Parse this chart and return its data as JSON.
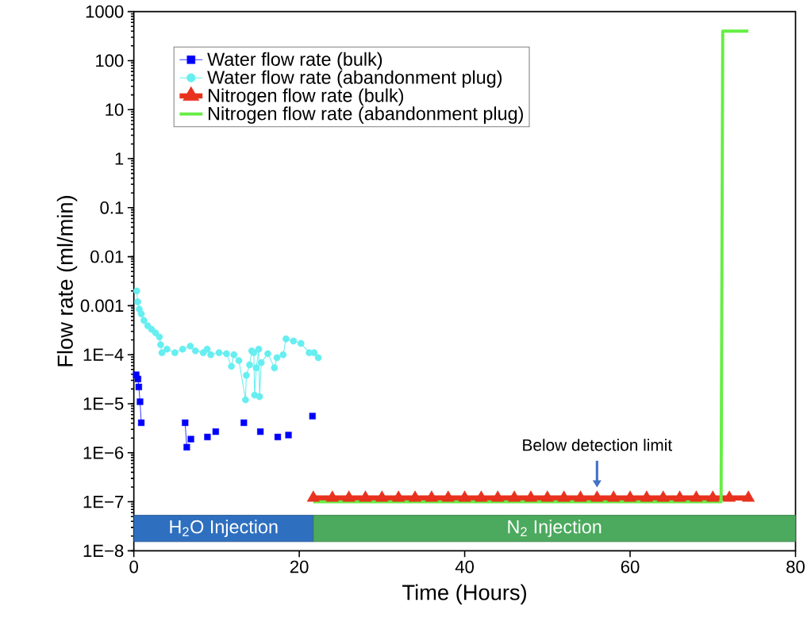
{
  "chart_data": {
    "type": "line",
    "xlabel": "Time (Hours)",
    "ylabel": "Flow rate (ml/min)",
    "log": "y",
    "xlim": [
      0,
      80
    ],
    "xticks": [
      0,
      20,
      40,
      60,
      80
    ],
    "ylim": [
      1e-08,
      1000
    ],
    "yticks": [
      {
        "value": 1e-08,
        "label": "1E−8"
      },
      {
        "value": 1e-07,
        "label": "1E−7"
      },
      {
        "value": 1e-06,
        "label": "1E−6"
      },
      {
        "value": 1e-05,
        "label": "1E−5"
      },
      {
        "value": 0.0001,
        "label": "1E−4"
      },
      0.001,
      0.01,
      0.1,
      1,
      10,
      100,
      1000
    ],
    "legend": "top left",
    "series": [
      {
        "name": "Water flow rate (bulk)",
        "color": "#0000ff",
        "marker": "square",
        "x": [
          0.28,
          0.5,
          0.6,
          0.75,
          0.9,
          3.5,
          6.2,
          6.4,
          6.6,
          6.9,
          7.9,
          8.9,
          9.4,
          9.9,
          11.6,
          13.3,
          14.3,
          15.3,
          16.3,
          17.4,
          18.0,
          18.7,
          20.1,
          21.6
        ],
        "values": [
          3.9e-05,
          3.2e-05,
          2.2e-05,
          1.1e-05,
          4.1e-06,
          null,
          4.1e-06,
          1.3e-06,
          null,
          1.9e-06,
          null,
          2.1e-06,
          null,
          2.7e-06,
          null,
          4.1e-06,
          null,
          2.7e-06,
          null,
          2.1e-06,
          null,
          2.3e-06,
          null,
          5.6e-06
        ]
      },
      {
        "name": "Water flow rate (abandonment plug)",
        "color": "#66eef0",
        "marker": "circle",
        "x": [
          0.35,
          0.47,
          0.65,
          0.9,
          1.22,
          1.68,
          2.15,
          2.62,
          3.09,
          3.24,
          3.4,
          4.0,
          4.96,
          5.9,
          6.83,
          7.45,
          8.39,
          8.86,
          9.3,
          10.3,
          11.2,
          11.8,
          12.1,
          12.7,
          13.5,
          13.6,
          14.0,
          14.25,
          14.5,
          14.6,
          14.8,
          15.1,
          15.2,
          15.4,
          16.2,
          17.0,
          17.3,
          18.05,
          18.4,
          19.3,
          20.2,
          21.2,
          21.8,
          22.3
        ],
        "values": [
          0.002,
          0.0012,
          0.00085,
          0.00068,
          0.0005,
          0.00039,
          0.00033,
          0.00028,
          0.00023,
          0.00016,
          0.00011,
          0.00013,
          0.00011,
          0.00013,
          0.00015,
          0.00012,
          0.00011,
          0.00013,
          0.0001,
          0.00011,
          0.000105,
          5.8e-05,
          0.0001,
          7.6e-05,
          1.2e-05,
          3.8e-05,
          6.2e-05,
          0.00012,
          0.00011,
          1.5e-05,
          5.4e-05,
          0.00013,
          1.4e-05,
          6.9e-05,
          0.000105,
          5.4e-05,
          8.7e-05,
          0.0001,
          0.00021,
          0.00019,
          0.00017,
          0.00011,
          0.00011,
          8.7e-05
        ]
      },
      {
        "name": "Nitrogen flow rate (bulk)",
        "color": "#e8321e",
        "marker": "triangle",
        "x": [
          21.7,
          24,
          26,
          28,
          30,
          32,
          34,
          36,
          38,
          40,
          42,
          44,
          46,
          48,
          50,
          52,
          54,
          56,
          58,
          60,
          62,
          64,
          66,
          68,
          70,
          72,
          74.3
        ],
        "values": [
          1.2e-07,
          1.2e-07,
          1.2e-07,
          1.2e-07,
          1.2e-07,
          1.2e-07,
          1.2e-07,
          1.2e-07,
          1.2e-07,
          1.2e-07,
          1.2e-07,
          1.2e-07,
          1.2e-07,
          1.2e-07,
          1.2e-07,
          1.2e-07,
          1.2e-07,
          1.2e-07,
          1.2e-07,
          1.2e-07,
          1.2e-07,
          1.2e-07,
          1.2e-07,
          1.2e-07,
          1.2e-07,
          1.2e-07,
          1.2e-07
        ]
      },
      {
        "name": "Nitrogen flow rate (abandonment plug)",
        "color": "#66ee44",
        "marker": "none",
        "x": [
          21.7,
          71.0,
          71.2,
          74.3
        ],
        "values": [
          1e-07,
          1e-07,
          400,
          400
        ]
      }
    ],
    "bands": [
      {
        "axis": "x",
        "from": 0,
        "to": 21.7,
        "label": "H$_{2}$O Injection",
        "color": "#2f6fbf"
      },
      {
        "axis": "x",
        "from": 21.7,
        "to": 80,
        "label": "N$_{2}$ Injection",
        "color": "#4caa5e"
      }
    ],
    "annotations": [
      {
        "text": "Below detection limit",
        "x": 56,
        "y": 1.2e-07
      }
    ]
  }
}
